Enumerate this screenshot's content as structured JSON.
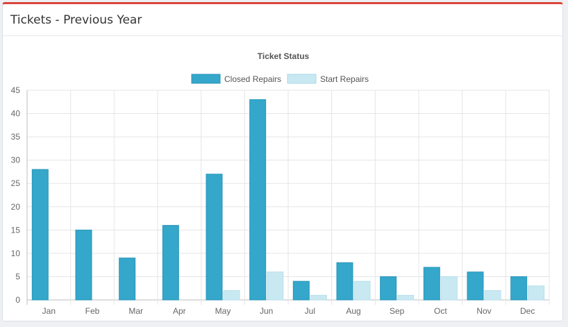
{
  "panel": {
    "title": "Tickets - Previous Year"
  },
  "colors": {
    "accent_border": "#d9453b",
    "closed": "#34a7cb",
    "start": "#c9e9f2"
  },
  "chart_data": {
    "type": "bar",
    "title": "Ticket Status",
    "categories": [
      "Jan",
      "Feb",
      "Mar",
      "Apr",
      "May",
      "Jun",
      "Jul",
      "Aug",
      "Sep",
      "Oct",
      "Nov",
      "Dec"
    ],
    "series": [
      {
        "name": "Closed Repairs",
        "color": "#34a7cb",
        "values": [
          28,
          15,
          9,
          16,
          27,
          43,
          4,
          8,
          5,
          7,
          6,
          5
        ]
      },
      {
        "name": "Start Repairs",
        "color": "#c9e9f2",
        "values": [
          0,
          0,
          0,
          0,
          2,
          6,
          1,
          4,
          1,
          5,
          2,
          3
        ]
      }
    ],
    "ylim": [
      0,
      45
    ],
    "yticks": [
      "0",
      "5",
      "10",
      "15",
      "20",
      "25",
      "30",
      "35",
      "40",
      "45"
    ],
    "legend_position": "top",
    "grid": true
  }
}
